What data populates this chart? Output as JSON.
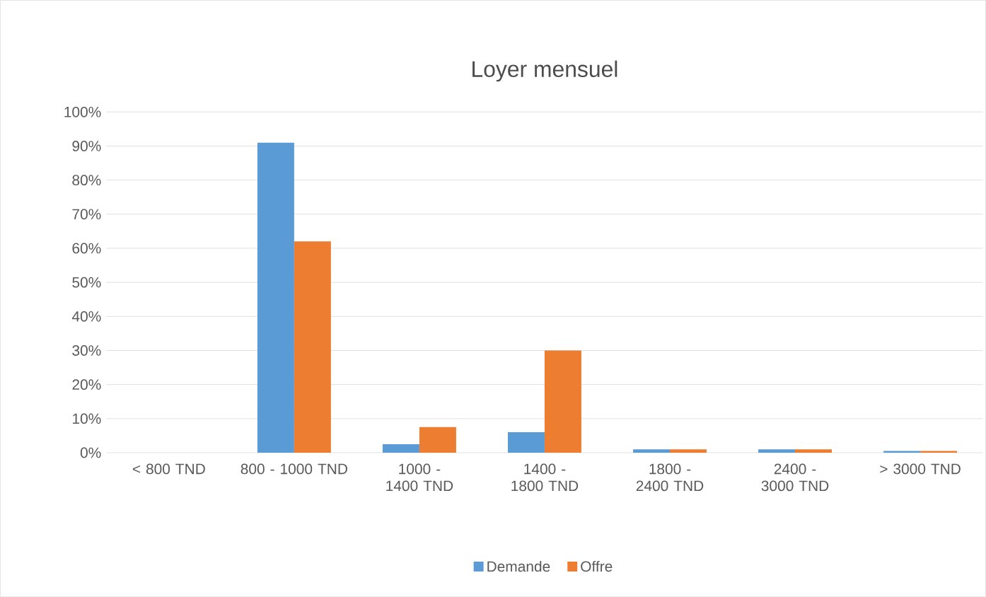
{
  "chart_data": {
    "type": "bar",
    "title": "Loyer mensuel",
    "categories": [
      "< 800 TND",
      "800 - 1000 TND",
      "1000 - 1400 TND",
      "1400 - 1800 TND",
      "1800 - 2400 TND",
      "2400 - 3000 TND",
      "> 3000 TND"
    ],
    "series": [
      {
        "name": "Demande",
        "color": "#5b9bd5",
        "values": [
          0,
          91,
          2.5,
          6,
          1,
          1,
          0.5
        ]
      },
      {
        "name": "Offre",
        "color": "#ed7d31",
        "values": [
          0,
          62,
          7.5,
          30,
          1,
          1,
          0.5
        ]
      }
    ],
    "ylim": [
      0,
      100
    ],
    "yticks": [
      {
        "value": 0,
        "label": "0%"
      },
      {
        "value": 10,
        "label": "10%"
      },
      {
        "value": 20,
        "label": "20%"
      },
      {
        "value": 30,
        "label": "30%"
      },
      {
        "value": 40,
        "label": "40%"
      },
      {
        "value": 50,
        "label": "50%"
      },
      {
        "value": 60,
        "label": "60%"
      },
      {
        "value": 70,
        "label": "70%"
      },
      {
        "value": 80,
        "label": "80%"
      },
      {
        "value": 90,
        "label": "90%"
      },
      {
        "value": 100,
        "label": "100%"
      }
    ],
    "grid": "y",
    "legend": "bottom"
  }
}
